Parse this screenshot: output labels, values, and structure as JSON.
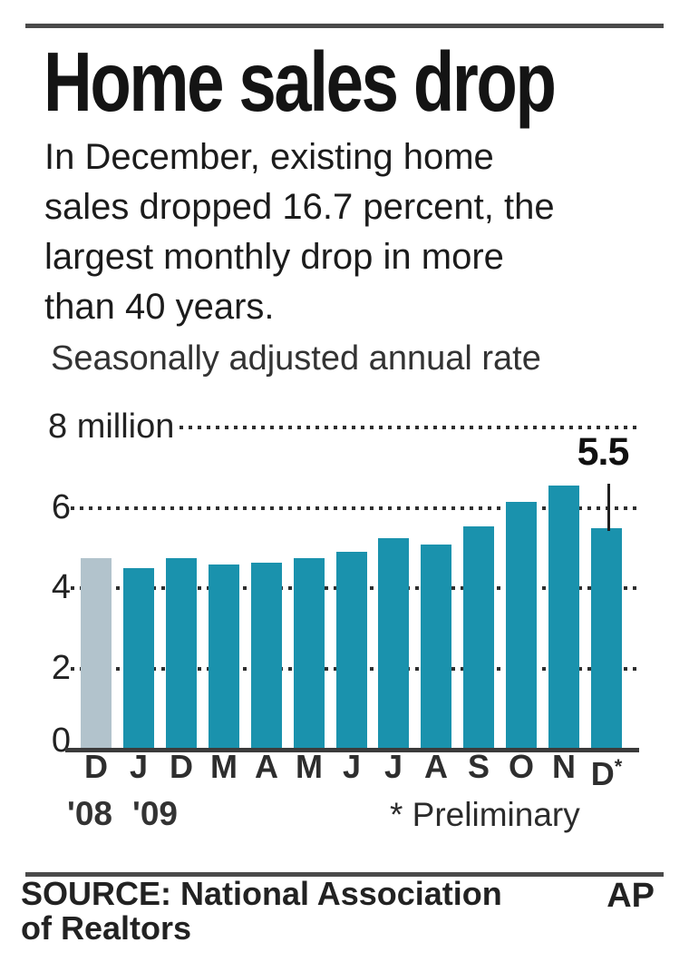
{
  "header": {
    "title": "Home sales drop",
    "description_lines": [
      "In December, existing home",
      "sales dropped 16.7 percent, the",
      "largest monthly drop in more",
      "than 40 years."
    ]
  },
  "chart": {
    "colors": {
      "bar": "#1a92ad",
      "highlight_bar": "#b2c3cc",
      "grid_dots": "#2f2f2f",
      "axis": "#3b3b3b",
      "rule": "#4a4a4a"
    },
    "year_labels": [
      "'08",
      "'09"
    ],
    "footnote": "* Preliminary"
  },
  "chart_data": {
    "type": "bar",
    "title": "Home sales drop",
    "subtitle": "Seasonally adjusted annual rate",
    "categories": [
      "D",
      "J",
      "D",
      "M",
      "A",
      "M",
      "J",
      "J",
      "A",
      "S",
      "O",
      "N",
      "D*"
    ],
    "values": [
      4.75,
      4.5,
      4.75,
      4.6,
      4.65,
      4.75,
      4.9,
      5.25,
      5.1,
      5.55,
      6.15,
      6.55,
      5.5
    ],
    "highlight": {
      "index": 0,
      "note": "December 2008 bar shown in gray"
    },
    "annotation_label": "5.5",
    "annotation_target_category": "D*",
    "ylim": [
      0,
      8
    ],
    "yticks": [
      {
        "value": 0,
        "label": "0"
      },
      {
        "value": 2,
        "label": "2"
      },
      {
        "value": 4,
        "label": "4"
      },
      {
        "value": 6,
        "label": "6"
      },
      {
        "value": 8,
        "label": "8 million"
      }
    ],
    "grid": "dotted horizontal lines at 2, 4, 6 and 8 million",
    "legend_position": "none",
    "xlabel": "",
    "ylabel": "Seasonally adjusted annual rate (millions)"
  },
  "footer": {
    "source_lines": [
      "SOURCE: National Association",
      "of Realtors"
    ],
    "credit": "AP"
  }
}
